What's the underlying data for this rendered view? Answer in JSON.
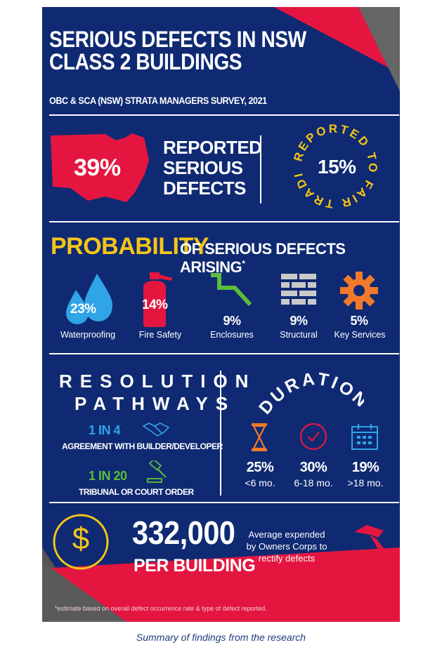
{
  "header": {
    "title": "SERIOUS DEFECTS IN NSW CLASS 2 BUILDINGS",
    "subtitle": "OBC & SCA (NSW) STRATA MANAGERS SURVEY, 2021"
  },
  "reported": {
    "percent": "39%",
    "label_line1": "REPORTED",
    "label_line2": "SERIOUS",
    "label_line3": "DEFECTS",
    "fair_trading_percent": "15%",
    "fair_trading_text": "REPORTED TO FAIR TRADING"
  },
  "probability": {
    "heading": "PROBABILITY",
    "subheading": "OF SERIOUS DEFECTS ARISING",
    "asterisk": "*",
    "items": [
      {
        "percent": "23%",
        "label": "Waterproofing",
        "icon": "water-drops-icon"
      },
      {
        "percent": "14%",
        "label": "Fire Safety",
        "icon": "fire-extinguisher-icon"
      },
      {
        "percent": "9%",
        "label": "Enclosures",
        "icon": "enclosure-stair-icon"
      },
      {
        "percent": "9%",
        "label": "Structural",
        "icon": "brick-wall-icon"
      },
      {
        "percent": "5%",
        "label": "Key Services",
        "icon": "gear-icon"
      }
    ]
  },
  "resolution": {
    "heading_line1": "RESOLUTION",
    "heading_line2": "PATHWAYS",
    "items": [
      {
        "ratio": "1 IN 4",
        "label": "AGREEMENT WITH BUILDER/DEVELOPER",
        "icon": "handshake-icon"
      },
      {
        "ratio": "1 IN 20",
        "label": "TRIBUNAL OR COURT ORDER",
        "icon": "gavel-icon"
      }
    ]
  },
  "duration": {
    "heading": "DURATION",
    "items": [
      {
        "percent": "25%",
        "label": "<6 mo.",
        "icon": "hourglass-icon"
      },
      {
        "percent": "30%",
        "label": "6-18 mo.",
        "icon": "clock-icon"
      },
      {
        "percent": "19%",
        "label": ">18 mo.",
        "icon": "calendar-icon"
      }
    ]
  },
  "cost": {
    "amount": "332,000",
    "per": "PER BUILDING",
    "currency_symbol": "$",
    "description_line1": "Average expended",
    "description_line2": "by Owners Corps to",
    "description_line3": "rectify defects"
  },
  "footnote": "*estimate based on overall defect occurrence rate & type of defect reported.",
  "caption": "Summary of findings from the research",
  "colors": {
    "navy": "#0f2a72",
    "red": "#e4163f",
    "yellow": "#f5c518",
    "blue": "#2fa4e7",
    "green": "#5bbd3c",
    "orange": "#f07a2a",
    "grey": "#555555"
  }
}
